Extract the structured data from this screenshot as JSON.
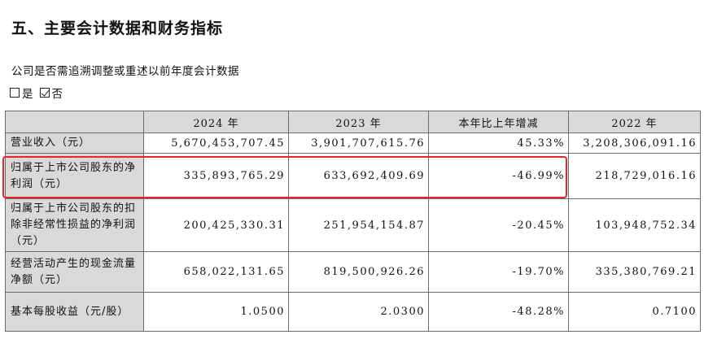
{
  "section_title": "五、主要会计数据和财务指标",
  "question": "公司是否需追溯调整或重述以前年度会计数据",
  "options": [
    {
      "label": "是",
      "checked": false
    },
    {
      "label": "否",
      "checked": true
    }
  ],
  "table": {
    "headers": [
      "",
      "2024 年",
      "2023 年",
      "本年比上年增减",
      "2022 年"
    ],
    "rows": [
      {
        "label": "营业收入（元）",
        "values": [
          "5,670,453,707.45",
          "3,901,707,615.76",
          "45.33%",
          "3,208,306,091.16"
        ]
      },
      {
        "label": "归属于上市公司股东的净利润（元）",
        "values": [
          "335,893,765.29",
          "633,692,409.69",
          "-46.99%",
          "218,729,016.16"
        ]
      },
      {
        "label": "归属于上市公司股东的扣除非经常性损益的净利润（元）",
        "values": [
          "200,425,330.31",
          "251,954,154.87",
          "-20.45%",
          "103,948,752.34"
        ]
      },
      {
        "label": "经营活动产生的现金流量净额（元）",
        "values": [
          "658,022,131.65",
          "819,500,926.26",
          "-19.70%",
          "335,380,769.21"
        ]
      },
      {
        "label": "基本每股收益（元/股）",
        "values": [
          "1.0500",
          "2.0300",
          "-48.28%",
          "0.7100"
        ]
      }
    ]
  },
  "highlight_color": "#e8252b"
}
